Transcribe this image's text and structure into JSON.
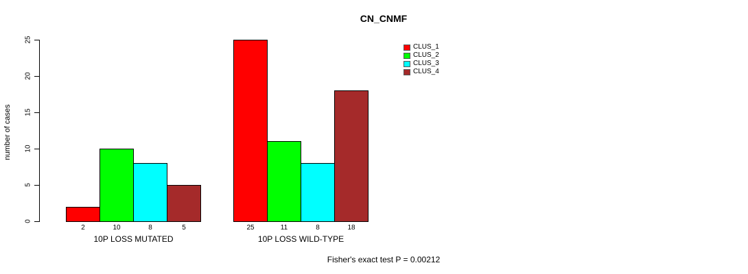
{
  "chart_data": {
    "type": "bar",
    "title": "CN_CNMF",
    "xlabel": "",
    "ylabel": "number of cases",
    "ylim": [
      0,
      25
    ],
    "yticks": [
      0,
      5,
      10,
      15,
      20,
      25
    ],
    "grid": false,
    "legend_position": "top-right-inside",
    "background": "#ffffff",
    "axis_color": "#000000",
    "groups": [
      {
        "label": "10P LOSS MUTATED",
        "values": [
          2,
          10,
          8,
          5
        ]
      },
      {
        "label": "10P LOSS WILD-TYPE",
        "values": [
          25,
          11,
          8,
          18
        ]
      }
    ],
    "series": [
      {
        "name": "CLUS_1",
        "color": "#FF0000"
      },
      {
        "name": "CLUS_2",
        "color": "#00FF00"
      },
      {
        "name": "CLUS_3",
        "color": "#00FFFF"
      },
      {
        "name": "CLUS_4",
        "color": "#A52A2A"
      }
    ],
    "annotation": "Fisher's exact test P = 0.00212"
  }
}
